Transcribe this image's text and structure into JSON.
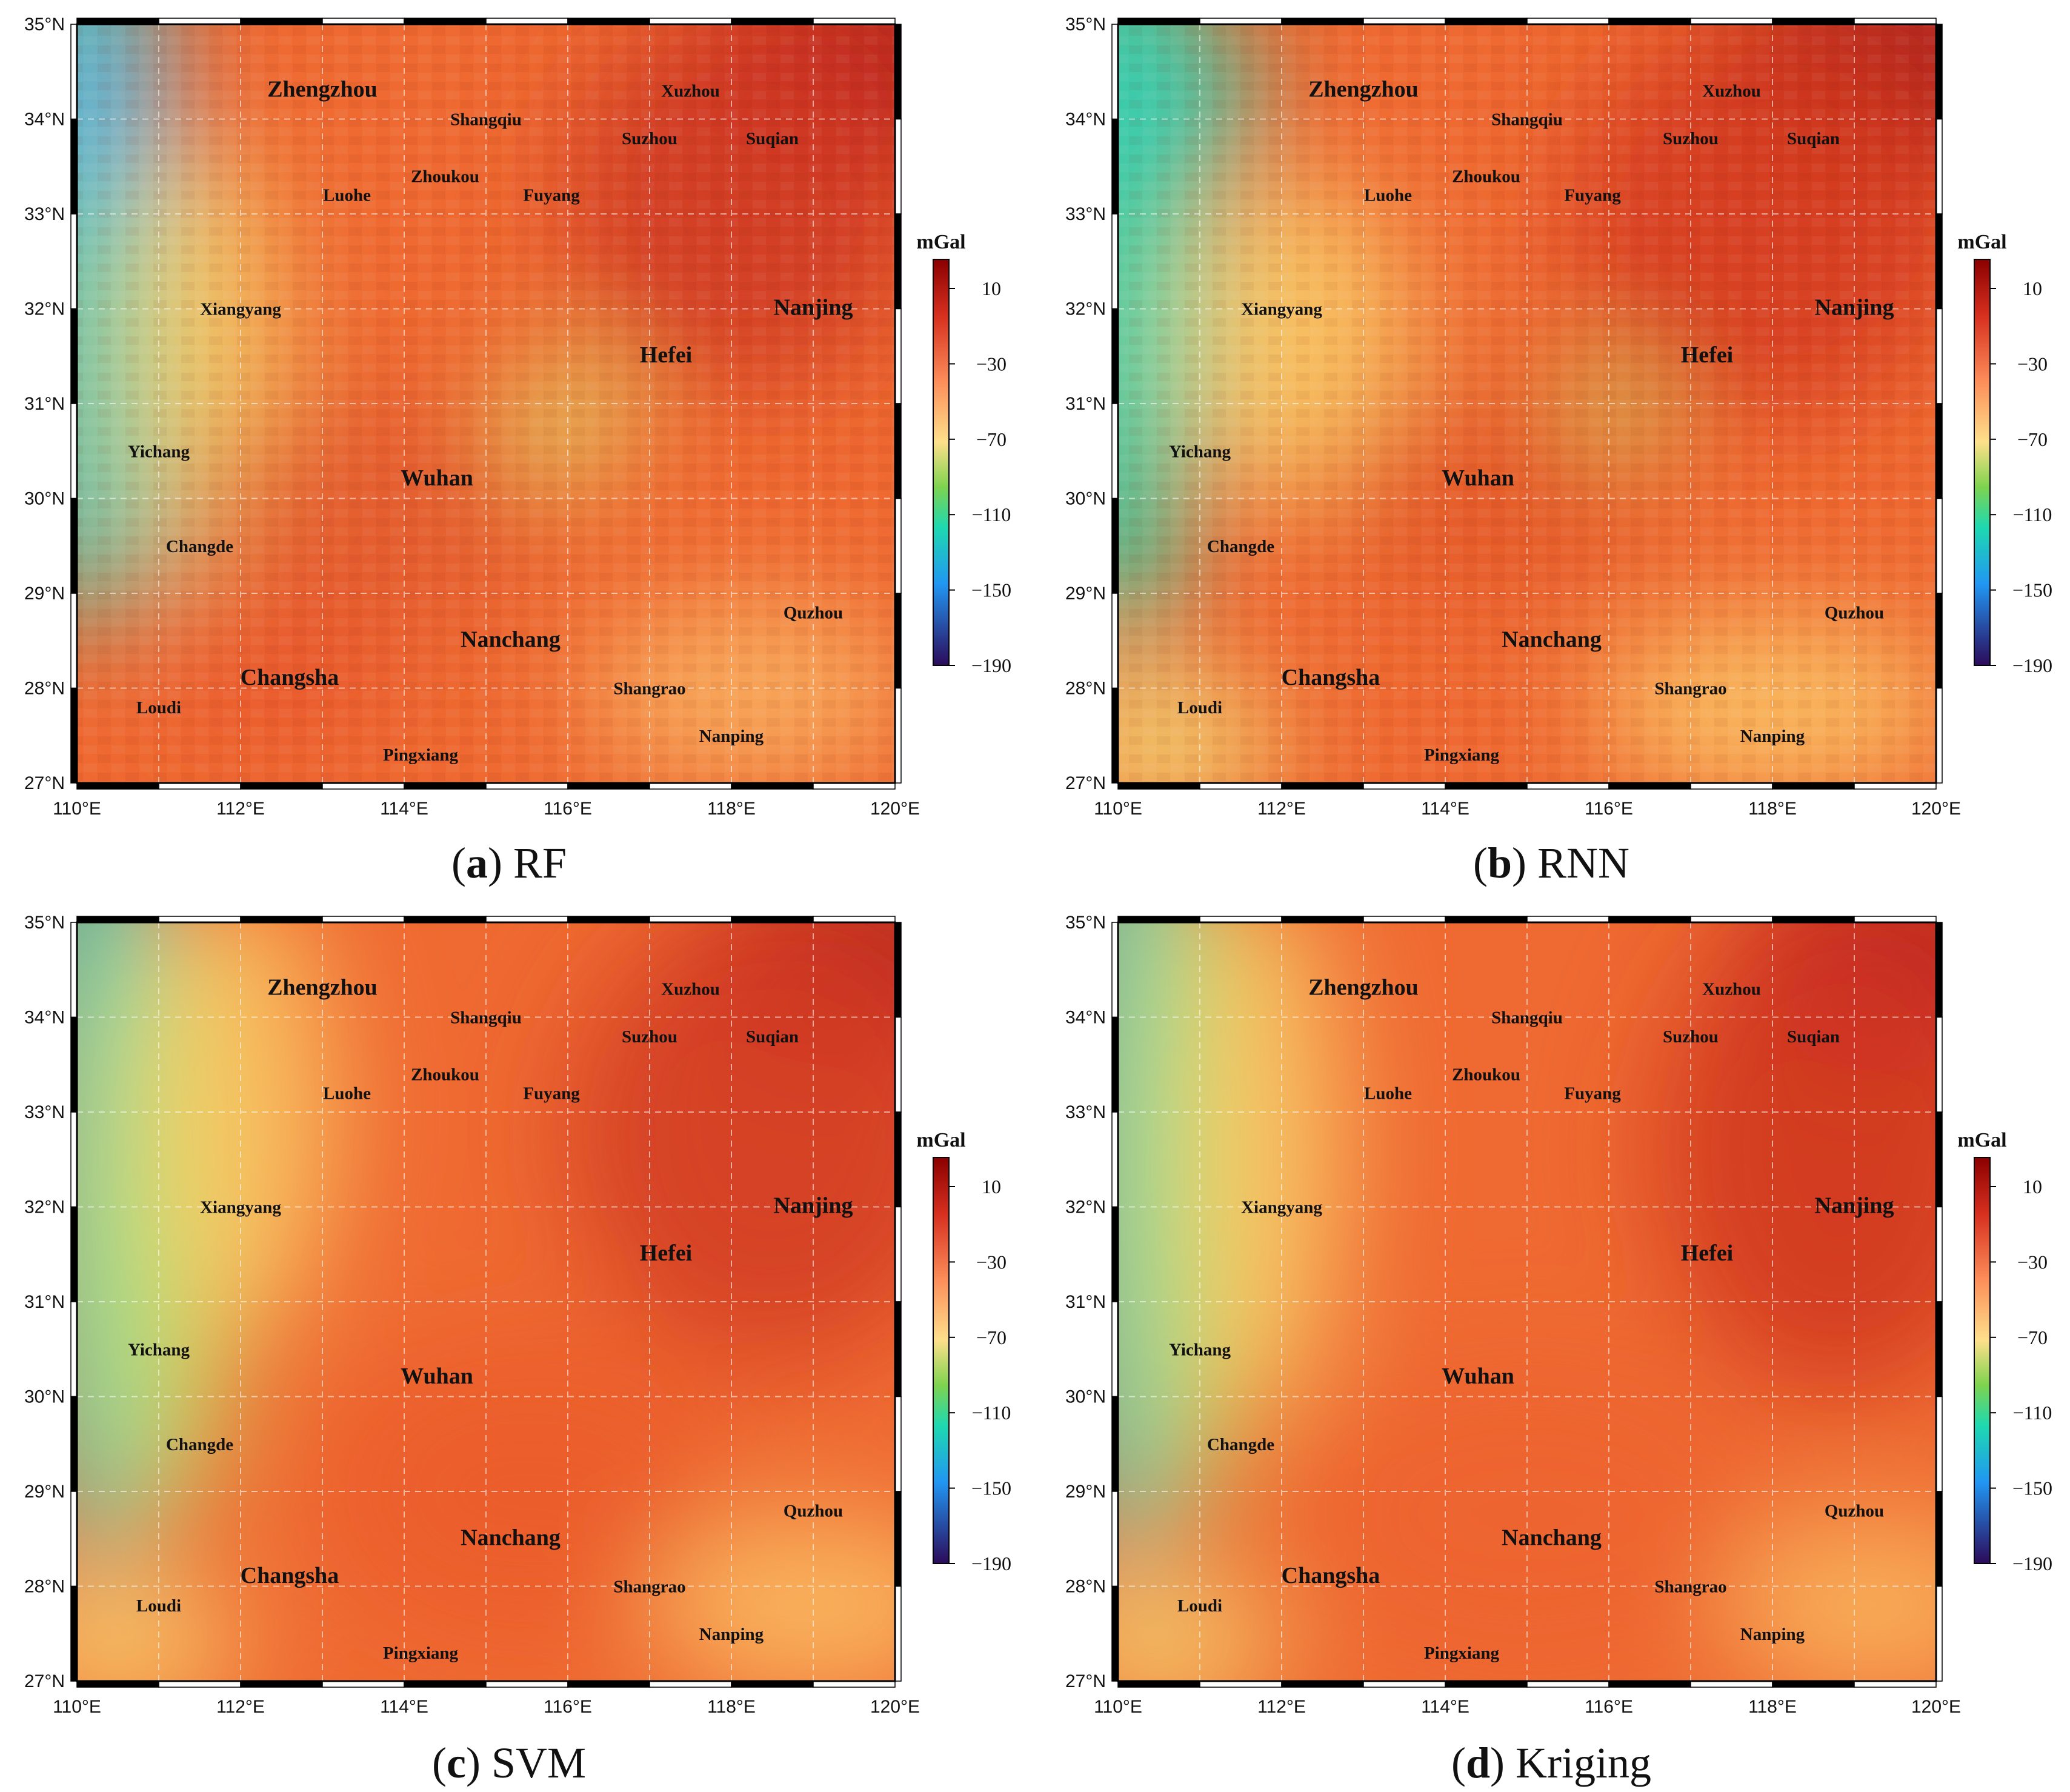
{
  "figure": {
    "lon_ticks": [
      "110°E",
      "112°E",
      "114°E",
      "116°E",
      "118°E",
      "120°E"
    ],
    "lat_ticks": [
      "27°N",
      "28°N",
      "29°N",
      "30°N",
      "31°N",
      "32°N",
      "33°N",
      "34°N",
      "35°N"
    ],
    "extent": {
      "lon": [
        110,
        120
      ],
      "lat": [
        27,
        35
      ]
    },
    "colorbar": {
      "unit": "mGal",
      "ticks": [
        "10",
        "−30",
        "−70",
        "−110",
        "−150",
        "−190"
      ],
      "colors": [
        "#8b0000",
        "#d7301f",
        "#fc8d59",
        "#fee08b",
        "#7fd34e",
        "#1ed9b0",
        "#2196f3",
        "#2c0a5a"
      ]
    },
    "cities": [
      {
        "name": "Zhengzhou",
        "lon": 113.0,
        "lat": 34.3,
        "major": true
      },
      {
        "name": "Shangqiu",
        "lon": 115.0,
        "lat": 34.0,
        "major": false
      },
      {
        "name": "Xuzhou",
        "lon": 117.5,
        "lat": 34.3,
        "major": false
      },
      {
        "name": "Suzhou",
        "lon": 117.0,
        "lat": 33.8,
        "major": false
      },
      {
        "name": "Suqian",
        "lon": 118.5,
        "lat": 33.8,
        "major": false
      },
      {
        "name": "Luohe",
        "lon": 113.3,
        "lat": 33.2,
        "major": false
      },
      {
        "name": "Zhoukou",
        "lon": 114.5,
        "lat": 33.4,
        "major": false
      },
      {
        "name": "Fuyang",
        "lon": 115.8,
        "lat": 33.2,
        "major": false
      },
      {
        "name": "Xiangyang",
        "lon": 112.0,
        "lat": 32.0,
        "major": false
      },
      {
        "name": "Nanjing",
        "lon": 119.0,
        "lat": 32.0,
        "major": true
      },
      {
        "name": "Hefei",
        "lon": 117.2,
        "lat": 31.5,
        "major": true
      },
      {
        "name": "Yichang",
        "lon": 111.0,
        "lat": 30.5,
        "major": false
      },
      {
        "name": "Wuhan",
        "lon": 114.4,
        "lat": 30.2,
        "major": true
      },
      {
        "name": "Changde",
        "lon": 111.5,
        "lat": 29.5,
        "major": false
      },
      {
        "name": "Quzhou",
        "lon": 119.0,
        "lat": 28.8,
        "major": false
      },
      {
        "name": "Nanchang",
        "lon": 115.3,
        "lat": 28.5,
        "major": true
      },
      {
        "name": "Changsha",
        "lon": 112.6,
        "lat": 28.1,
        "major": true
      },
      {
        "name": "Shangrao",
        "lon": 117.0,
        "lat": 28.0,
        "major": false
      },
      {
        "name": "Loudi",
        "lon": 111.0,
        "lat": 27.8,
        "major": false
      },
      {
        "name": "Nanping",
        "lon": 118.0,
        "lat": 27.5,
        "major": false
      },
      {
        "name": "Pingxiang",
        "lon": 114.2,
        "lat": 27.3,
        "major": false
      }
    ]
  },
  "panels": [
    {
      "letter": "a",
      "method": "RF"
    },
    {
      "letter": "b",
      "method": "RNN"
    },
    {
      "letter": "c",
      "method": "SVM"
    },
    {
      "letter": "d",
      "method": "Kriging"
    }
  ]
}
